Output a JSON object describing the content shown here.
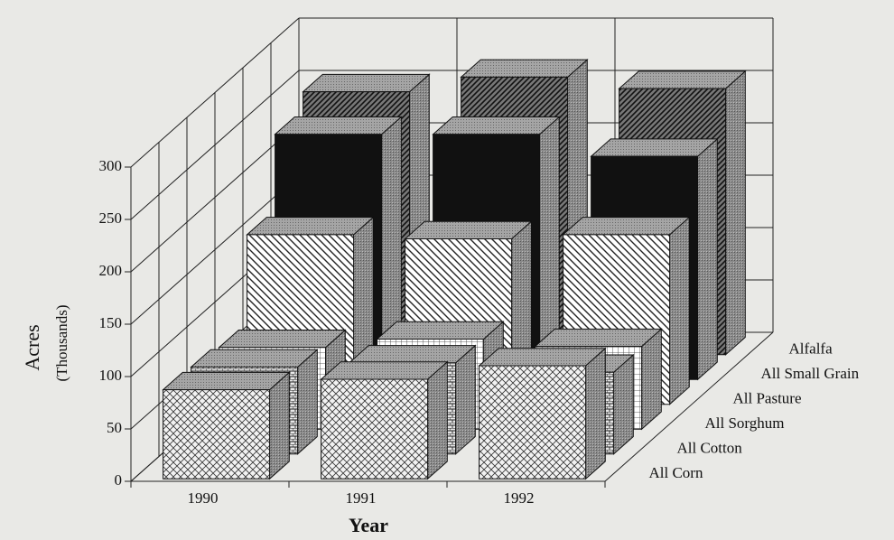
{
  "chart_data": {
    "type": "bar3d",
    "categories": [
      "1990",
      "1991",
      "1992"
    ],
    "series": [
      {
        "name": "All Corn",
        "color": "#f2f2f2",
        "values": [
          85,
          95,
          108
        ]
      },
      {
        "name": "All Cotton",
        "color": "#e8e8e8",
        "values": [
          83,
          87,
          78
        ]
      },
      {
        "name": "All Sorghum",
        "color": "#ffffff",
        "values": [
          78,
          86,
          79
        ]
      },
      {
        "name": "All Pasture",
        "color": "#ffffff",
        "values": [
          162,
          158,
          162
        ]
      },
      {
        "name": "All Small Grain",
        "color": "#111111",
        "values": [
          234,
          234,
          213
        ]
      },
      {
        "name": "Alfalfa",
        "color": "#777777",
        "values": [
          251,
          265,
          254
        ]
      }
    ],
    "y_label": "Acres",
    "y_sublabel": "(Thousands)",
    "x_label": "Year",
    "ylim": [
      0,
      300
    ],
    "yticks": [
      0,
      50,
      100,
      150,
      200,
      250,
      300
    ],
    "grid": true
  }
}
